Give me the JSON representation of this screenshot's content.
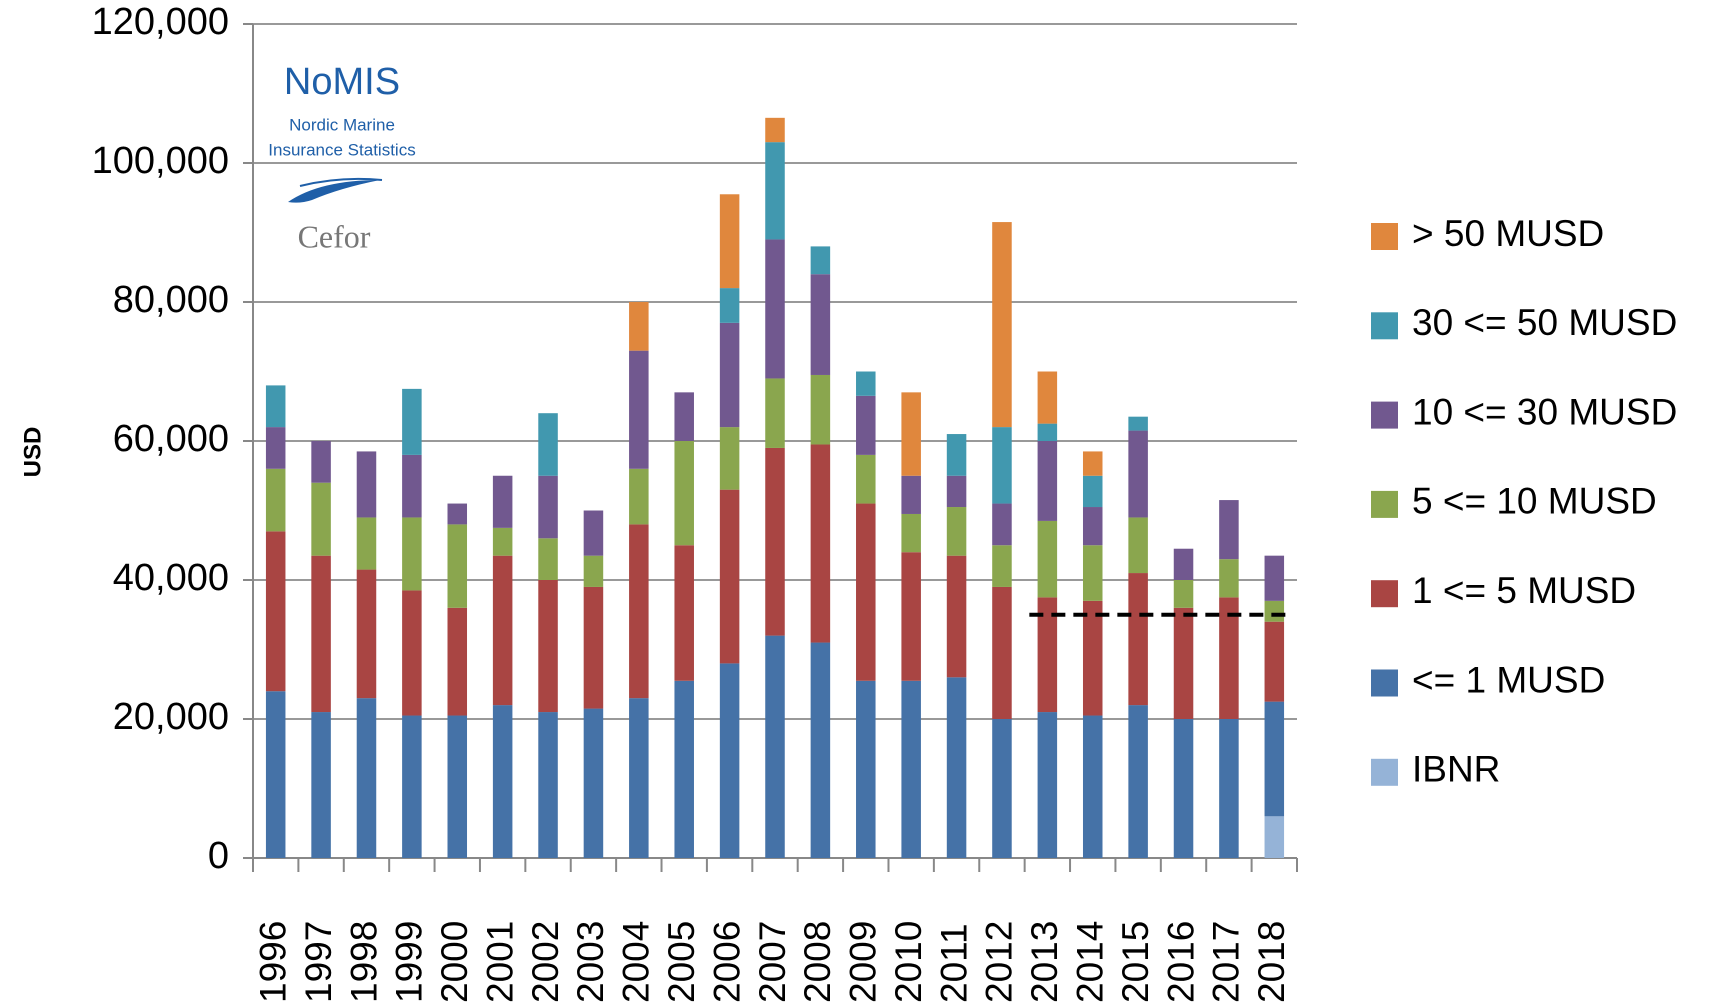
{
  "chart_data": {
    "type": "stacked_bar",
    "y_label": "USD",
    "categories": [
      "1996",
      "1997",
      "1998",
      "1999",
      "2000",
      "2001",
      "2002",
      "2003",
      "2004",
      "2005",
      "2006",
      "2007",
      "2008",
      "2009",
      "2010",
      "2011",
      "2012",
      "2013",
      "2014",
      "2015",
      "2016",
      "2017",
      "2018"
    ],
    "series": [
      {
        "name": "IBNR",
        "color": "#95b3d7",
        "values": [
          0,
          0,
          0,
          0,
          0,
          0,
          0,
          0,
          0,
          0,
          0,
          0,
          0,
          0,
          0,
          0,
          0,
          0,
          0,
          0,
          0,
          0,
          6000
        ]
      },
      {
        "name": "<= 1 MUSD",
        "color": "#4572a7",
        "values": [
          24000,
          21000,
          23000,
          20500,
          20500,
          22000,
          21000,
          21500,
          23000,
          25500,
          28000,
          32000,
          31000,
          25500,
          25500,
          26000,
          20000,
          21000,
          20500,
          22000,
          20000,
          20000,
          16500
        ]
      },
      {
        "name": "1 <= 5 MUSD",
        "color": "#a94543",
        "values": [
          23000,
          22500,
          18500,
          18000,
          15500,
          21500,
          19000,
          17500,
          25000,
          19500,
          25000,
          27000,
          28500,
          25500,
          18500,
          17500,
          19000,
          16500,
          16500,
          19000,
          16000,
          17500,
          11500
        ]
      },
      {
        "name": "5 <= 10 MUSD",
        "color": "#8aa64e",
        "values": [
          9000,
          10500,
          7500,
          10500,
          12000,
          4000,
          6000,
          4500,
          8000,
          15000,
          9000,
          10000,
          10000,
          7000,
          5500,
          7000,
          6000,
          11000,
          8000,
          8000,
          4000,
          5500,
          3000
        ]
      },
      {
        "name": "10 <= 30 MUSD",
        "color": "#71588f",
        "values": [
          6000,
          6000,
          9500,
          9000,
          3000,
          7500,
          9000,
          6500,
          17000,
          7000,
          15000,
          20000,
          14500,
          8500,
          5500,
          4500,
          6000,
          11500,
          5500,
          12500,
          4500,
          8500,
          6500
        ]
      },
      {
        "name": "30 <= 50 MUSD",
        "color": "#4198af",
        "values": [
          6000,
          0,
          0,
          9500,
          0,
          0,
          9000,
          0,
          0,
          0,
          5000,
          14000,
          4000,
          3500,
          0,
          6000,
          11000,
          2500,
          4500,
          2000,
          0,
          0,
          0
        ]
      },
      {
        "name": "> 50 MUSD",
        "color": "#e0873d",
        "values": [
          0,
          0,
          0,
          0,
          0,
          0,
          0,
          0,
          7000,
          0,
          13500,
          3500,
          0,
          0,
          12000,
          0,
          29500,
          7500,
          3500,
          0,
          0,
          0,
          0
        ]
      }
    ],
    "ylim": [
      0,
      120000
    ],
    "yticks": [
      0,
      {
        "value": 20000,
        "label": "20,000"
      },
      {
        "value": 40000,
        "label": "40,000"
      },
      {
        "value": 60000,
        "label": "60,000"
      },
      {
        "value": 80000,
        "label": "80,000"
      },
      {
        "value": 100000,
        "label": "100,000"
      },
      {
        "value": 120000,
        "label": "120,000"
      }
    ],
    "grid": true,
    "legend": "right",
    "reference_line": {
      "y": 35000,
      "from": "2013",
      "to": "2018"
    },
    "logo": {
      "title": "NoMIS",
      "line1": "Nordic Marine",
      "line2": "Insurance Statistics",
      "brand": "Cefor"
    }
  }
}
